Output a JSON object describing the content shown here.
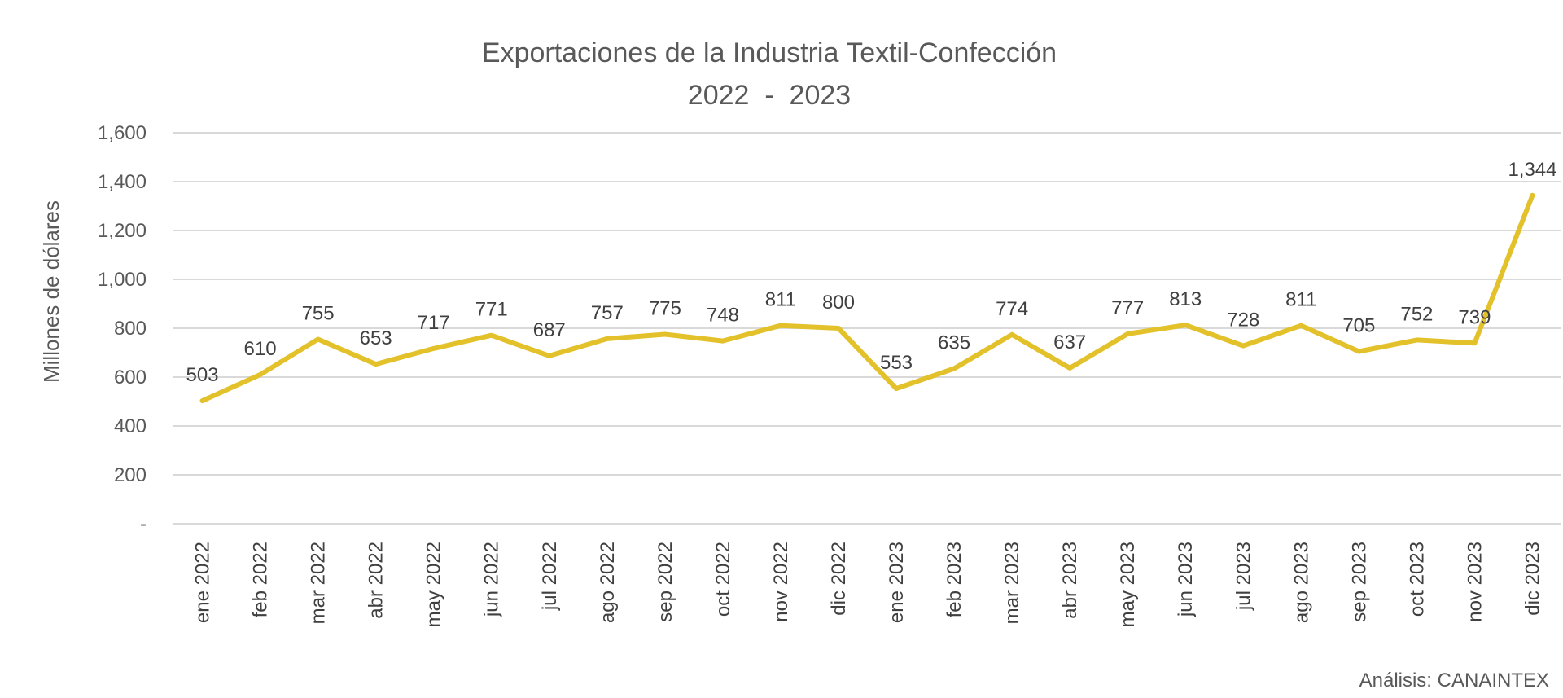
{
  "chart_data": {
    "type": "line",
    "title": "Exportaciones de la Industria Textil-Confección",
    "subtitle": "2022  -  2023",
    "ylabel": "Millones de dólares",
    "xlabel": "",
    "ylim": [
      0,
      1600
    ],
    "yticks": [
      0,
      200,
      400,
      600,
      800,
      1000,
      1200,
      1400,
      1600
    ],
    "ytick_labels": [
      "-",
      "200",
      "400",
      "600",
      "800",
      "1,000",
      "1,200",
      "1,400",
      "1,600"
    ],
    "grid": true,
    "legend": "none",
    "categories": [
      "ene 2022",
      "feb 2022",
      "mar 2022",
      "abr 2022",
      "may 2022",
      "jun 2022",
      "jul 2022",
      "ago 2022",
      "sep 2022",
      "oct 2022",
      "nov 2022",
      "dic 2022",
      "ene 2023",
      "feb 2023",
      "mar 2023",
      "abr 2023",
      "may 2023",
      "jun 2023",
      "jul 2023",
      "ago 2023",
      "sep 2023",
      "oct 2023",
      "nov 2023",
      "dic 2023"
    ],
    "series": [
      {
        "values": [
          503,
          610,
          755,
          653,
          717,
          771,
          687,
          757,
          775,
          748,
          811,
          800,
          553,
          635,
          774,
          637,
          777,
          813,
          728,
          811,
          705,
          752,
          739,
          1344
        ],
        "labels": [
          "503",
          "610",
          "755",
          "653",
          "717",
          "771",
          "687",
          "757",
          "775",
          "748",
          "811",
          "800",
          "553",
          "635",
          "774",
          "637",
          "777",
          "813",
          "728",
          "811",
          "705",
          "752",
          "739",
          "1,344"
        ],
        "color": "#E3C12A"
      }
    ],
    "source": "Análisis: CANAINTEX"
  }
}
